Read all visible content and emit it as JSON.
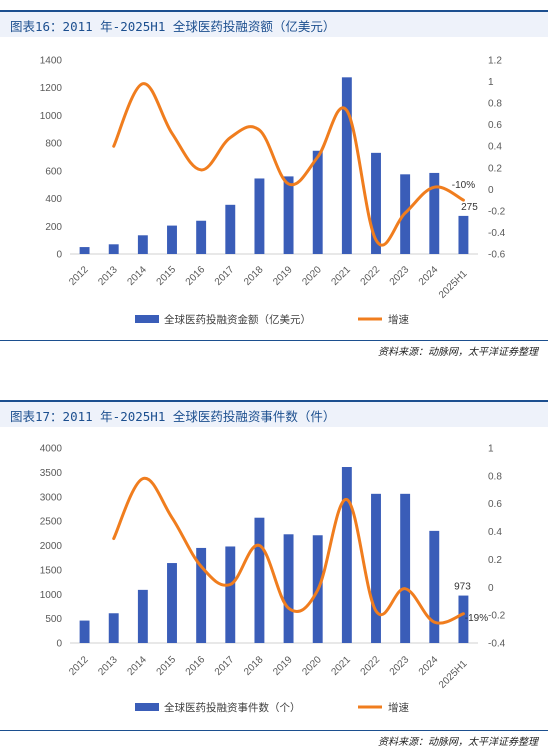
{
  "figures": [
    {
      "title": "图表16：2011 年-2025H1 全球医药投融资额（亿美元）",
      "source": "资料来源：动脉网，太平洋证券整理",
      "colors": {
        "bar": "#3a5db8",
        "line": "#f07d1e",
        "accent": "#1c4f8f"
      },
      "chart_data": {
        "type": "bar",
        "categories": [
          "2012",
          "2013",
          "2014",
          "2015",
          "2016",
          "2017",
          "2018",
          "2019",
          "2020",
          "2021",
          "2022",
          "2023",
          "2024",
          "2025H1"
        ],
        "series": [
          {
            "name": "全球医药投融资金额（亿美元）",
            "type": "bar",
            "axis": "left",
            "values": [
              50,
              70,
              135,
              205,
              240,
              355,
              545,
              560,
              745,
              1275,
              730,
              575,
              585,
              275
            ]
          },
          {
            "name": "增速",
            "type": "line",
            "axis": "right",
            "values": [
              null,
              0.4,
              0.98,
              0.52,
              0.18,
              0.48,
              0.55,
              0.05,
              0.3,
              0.73,
              -0.47,
              -0.22,
              0.02,
              -0.1
            ]
          }
        ],
        "ylim_left": [
          0,
          1400
        ],
        "yticks_left": [
          0,
          200,
          400,
          600,
          800,
          1000,
          1200,
          1400
        ],
        "ylim_right": [
          -0.6,
          1.2
        ],
        "yticks_right": [
          -0.6,
          -0.4,
          -0.2,
          0,
          0.2,
          0.4,
          0.6,
          0.8,
          1,
          1.2
        ],
        "annotations": [
          {
            "text": "-10%",
            "series": "增速",
            "index": 13
          },
          {
            "text": "275",
            "series": "全球医药投融资金额（亿美元）",
            "index": 13
          }
        ],
        "grid": false,
        "legend": "bottom"
      }
    },
    {
      "title": "图表17：2011 年-2025H1 全球医药投融资事件数（件）",
      "source": "资料来源：动脉网，太平洋证券整理",
      "colors": {
        "bar": "#3a5db8",
        "line": "#f07d1e",
        "accent": "#1c4f8f"
      },
      "chart_data": {
        "type": "bar",
        "categories": [
          "2012",
          "2013",
          "2014",
          "2015",
          "2016",
          "2017",
          "2018",
          "2019",
          "2020",
          "2021",
          "2022",
          "2023",
          "2024",
          "2025H1"
        ],
        "series": [
          {
            "name": "全球医药投融资事件数（个）",
            "type": "bar",
            "axis": "left",
            "values": [
              460,
              610,
              1090,
              1640,
              1950,
              1980,
              2570,
              2230,
              2210,
              3610,
              3060,
              3060,
              2300,
              973
            ]
          },
          {
            "name": "增速",
            "type": "line",
            "axis": "right",
            "values": [
              null,
              0.35,
              0.78,
              0.5,
              0.15,
              0.02,
              0.3,
              -0.15,
              -0.02,
              0.63,
              -0.17,
              -0.01,
              -0.25,
              -0.19
            ]
          }
        ],
        "ylim_left": [
          0,
          4000
        ],
        "yticks_left": [
          0,
          500,
          1000,
          1500,
          2000,
          2500,
          3000,
          3500,
          4000
        ],
        "ylim_right": [
          -0.4,
          1
        ],
        "yticks_right": [
          -0.4,
          -0.2,
          0,
          0.2,
          0.4,
          0.6,
          0.8,
          1
        ],
        "annotations": [
          {
            "text": "973",
            "series": "全球医药投融资事件数（个）",
            "index": 13
          },
          {
            "text": "-19%",
            "series": "增速",
            "index": 13
          }
        ],
        "grid": false,
        "legend": "bottom"
      }
    }
  ]
}
